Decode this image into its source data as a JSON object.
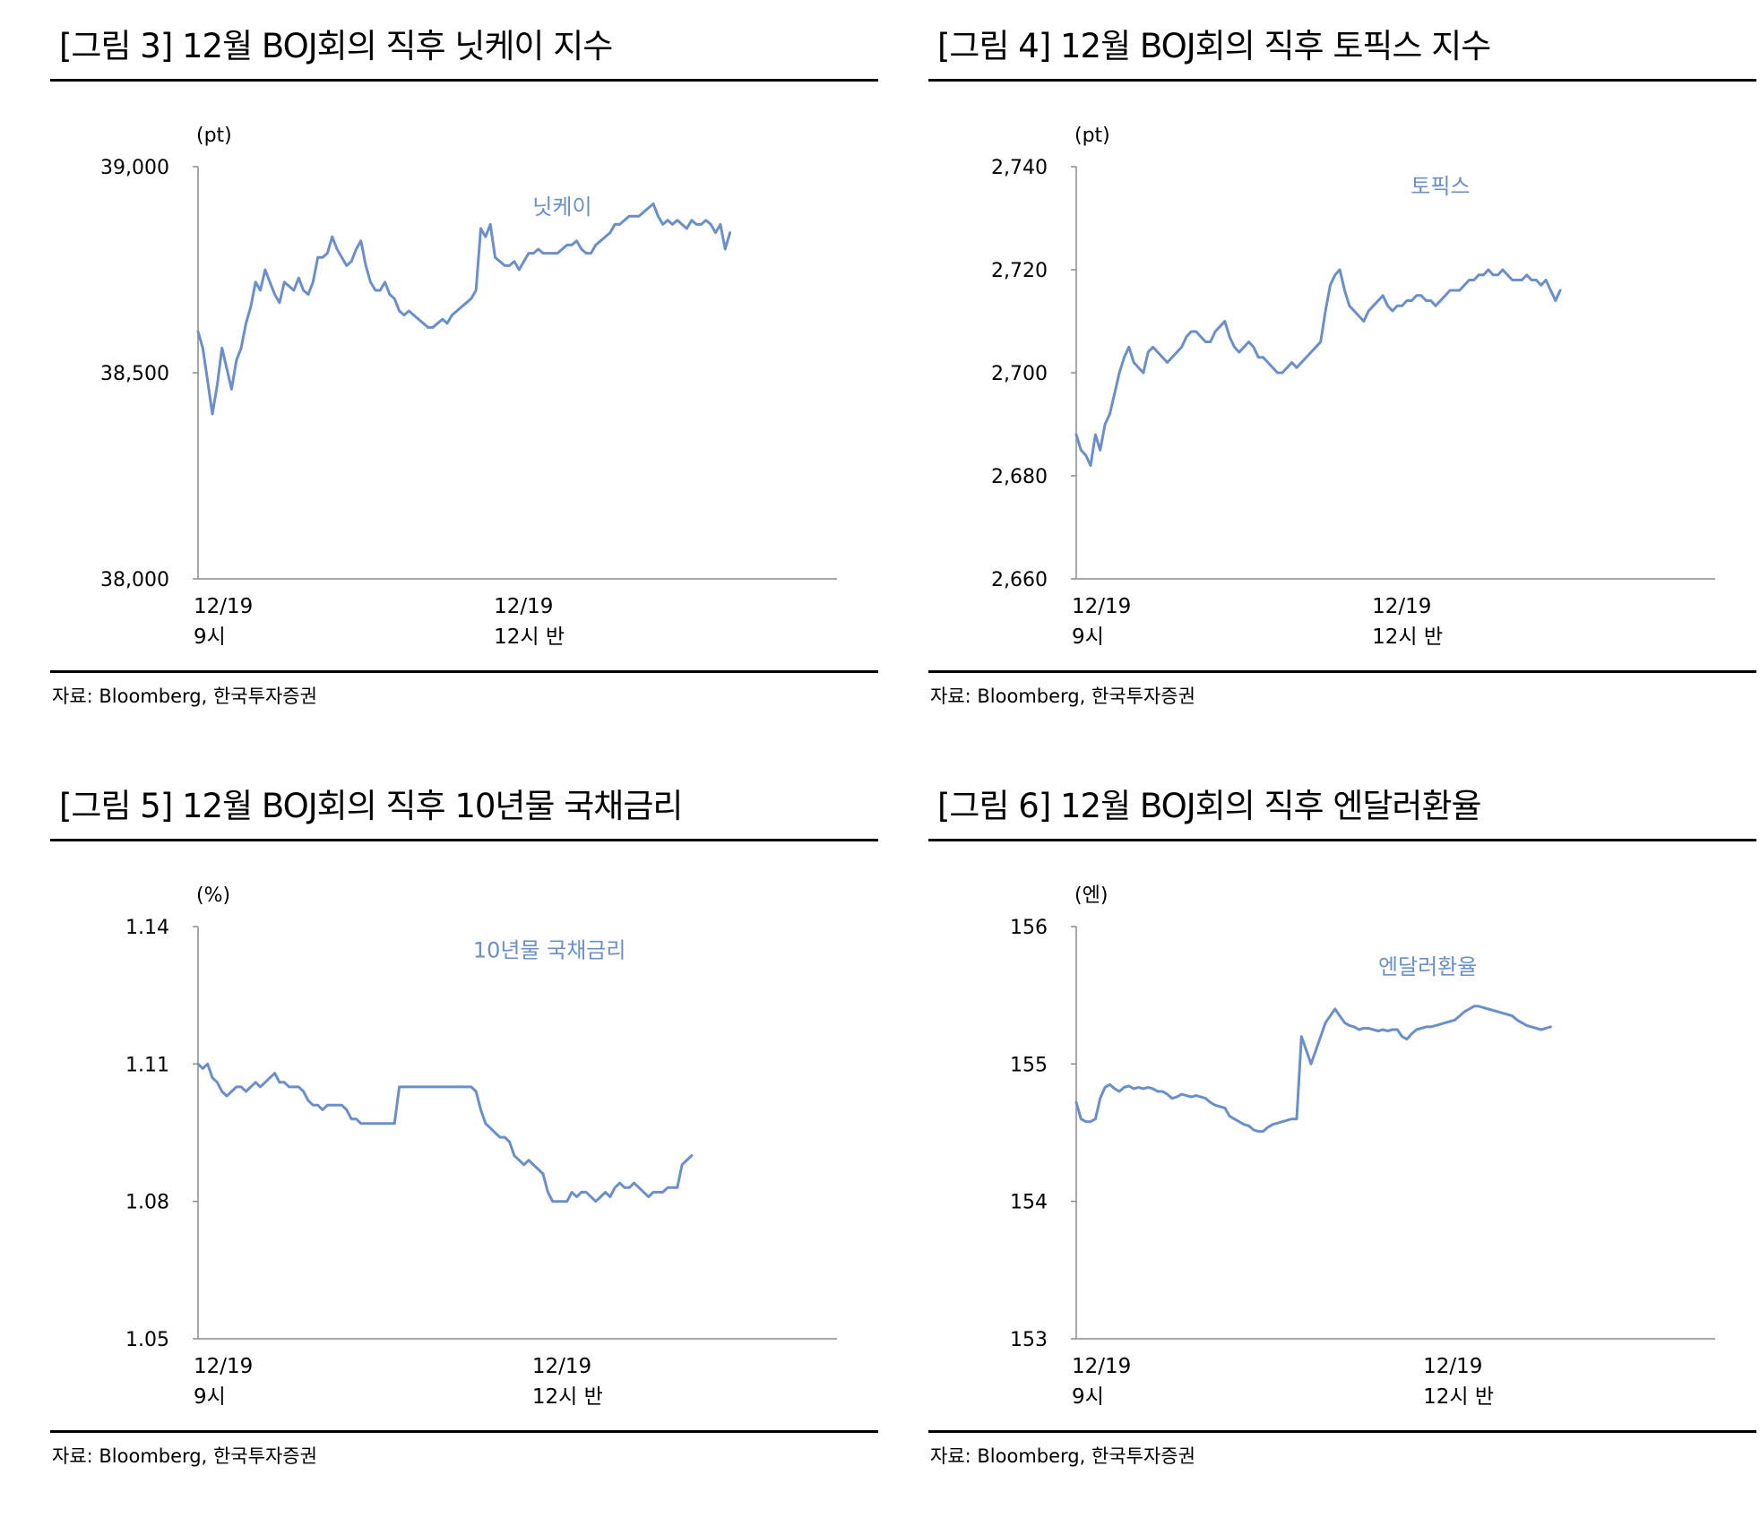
{
  "panels": [
    {
      "id": "nikkei",
      "title": "[그림 3] 12월 BOJ회의 직후 닛케이 지수",
      "source": "자료: Bloomberg, 한국투자증권",
      "chart_data": {
        "type": "line",
        "unit_label": "(pt)",
        "ylim": [
          38000,
          39000
        ],
        "yticks": [
          "39,000",
          "38,500",
          "38,000"
        ],
        "ytick_values": [
          39000,
          38500,
          38000
        ],
        "x_tick_labels": [
          [
            "12/19",
            "9시"
          ],
          [
            "12/19",
            "12시 반"
          ]
        ],
        "x_tick_positions": [
          0,
          0.47
        ],
        "series": [
          {
            "name": "닛케이",
            "color": "#6A8FC9",
            "step": 0.0075,
            "values": [
              38600,
              38560,
              38480,
              38400,
              38470,
              38560,
              38510,
              38460,
              38530,
              38560,
              38620,
              38660,
              38720,
              38700,
              38750,
              38720,
              38690,
              38670,
              38720,
              38710,
              38700,
              38730,
              38700,
              38690,
              38720,
              38780,
              38780,
              38790,
              38830,
              38800,
              38780,
              38760,
              38770,
              38800,
              38820,
              38760,
              38720,
              38700,
              38700,
              38720,
              38690,
              38680,
              38650,
              38640,
              38650,
              38640,
              38630,
              38620,
              38610,
              38610,
              38620,
              38630,
              38620,
              38640,
              38650,
              38660,
              38670,
              38680,
              38700,
              38850,
              38830,
              38860,
              38780,
              38770,
              38760,
              38760,
              38770,
              38750,
              38770,
              38790,
              38790,
              38800,
              38790,
              38790,
              38790,
              38790,
              38800,
              38810,
              38810,
              38820,
              38800,
              38790,
              38790,
              38810,
              38820,
              38830,
              38840,
              38860,
              38860,
              38870,
              38880,
              38880,
              38880,
              38890,
              38900,
              38910,
              38880,
              38860,
              38870,
              38860,
              38870,
              38860,
              38850,
              38870,
              38860,
              38860,
              38870,
              38860,
              38840,
              38860,
              38800,
              38840
            ]
          }
        ]
      }
    },
    {
      "id": "topix",
      "title": "[그림 4] 12월 BOJ회의 직후 토픽스 지수",
      "source": "자료: Bloomberg, 한국투자증권",
      "chart_data": {
        "type": "line",
        "unit_label": "(pt)",
        "ylim": [
          2660,
          2740
        ],
        "yticks": [
          "2,740",
          "2,720",
          "2,700",
          "2,680",
          "2,660"
        ],
        "ytick_values": [
          2740,
          2720,
          2700,
          2680,
          2660
        ],
        "x_tick_labels": [
          [
            "12/19",
            "9시"
          ],
          [
            "12/19",
            "12시 반"
          ]
        ],
        "x_tick_positions": [
          0,
          0.47
        ],
        "series": [
          {
            "name": "토픽스",
            "color": "#6A8FC9",
            "step": 0.0075,
            "values": [
              2688,
              2685,
              2684,
              2682,
              2688,
              2685,
              2690,
              2692,
              2696,
              2700,
              2703,
              2705,
              2702,
              2701,
              2700,
              2704,
              2705,
              2704,
              2703,
              2702,
              2703,
              2704,
              2705,
              2707,
              2708,
              2708,
              2707,
              2706,
              2706,
              2708,
              2709,
              2710,
              2707,
              2705,
              2704,
              2705,
              2706,
              2705,
              2703,
              2703,
              2702,
              2701,
              2700,
              2700,
              2701,
              2702,
              2701,
              2702,
              2703,
              2704,
              2705,
              2706,
              2712,
              2717,
              2719,
              2720,
              2716,
              2713,
              2712,
              2711,
              2710,
              2712,
              2713,
              2714,
              2715,
              2713,
              2712,
              2713,
              2713,
              2714,
              2714,
              2715,
              2715,
              2714,
              2714,
              2713,
              2714,
              2715,
              2716,
              2716,
              2716,
              2717,
              2718,
              2718,
              2719,
              2719,
              2720,
              2719,
              2719,
              2720,
              2719,
              2718,
              2718,
              2718,
              2719,
              2718,
              2718,
              2717,
              2718,
              2716,
              2714,
              2716
            ]
          }
        ]
      }
    },
    {
      "id": "jgb10y",
      "title": "[그림 5] 12월 BOJ회의 직후 10년물 국채금리",
      "source": "자료: Bloomberg, 한국투자증권",
      "chart_data": {
        "type": "line",
        "unit_label": "(%)",
        "ylim": [
          1.05,
          1.14
        ],
        "yticks": [
          "1.14",
          "1.11",
          "1.08",
          "1.05"
        ],
        "ytick_values": [
          1.14,
          1.11,
          1.08,
          1.05
        ],
        "x_tick_labels": [
          [
            "12/19",
            "9시"
          ],
          [
            "12/19",
            "12시 반"
          ]
        ],
        "x_tick_positions": [
          0,
          0.53
        ],
        "series": [
          {
            "name": "10년물 국채금리",
            "color": "#6A8FC9",
            "step": 0.0075,
            "values": [
              1.11,
              1.109,
              1.11,
              1.107,
              1.106,
              1.104,
              1.103,
              1.104,
              1.105,
              1.105,
              1.104,
              1.105,
              1.106,
              1.105,
              1.106,
              1.107,
              1.108,
              1.106,
              1.106,
              1.105,
              1.105,
              1.105,
              1.104,
              1.102,
              1.101,
              1.101,
              1.1,
              1.101,
              1.101,
              1.101,
              1.101,
              1.1,
              1.098,
              1.098,
              1.097,
              1.097,
              1.097,
              1.097,
              1.097,
              1.097,
              1.097,
              1.097,
              1.105,
              1.105,
              1.105,
              1.105,
              1.105,
              1.105,
              1.105,
              1.105,
              1.105,
              1.105,
              1.105,
              1.105,
              1.105,
              1.105,
              1.105,
              1.105,
              1.104,
              1.1,
              1.097,
              1.096,
              1.095,
              1.094,
              1.094,
              1.093,
              1.09,
              1.089,
              1.088,
              1.089,
              1.088,
              1.087,
              1.086,
              1.082,
              1.08,
              1.08,
              1.08,
              1.08,
              1.082,
              1.081,
              1.082,
              1.082,
              1.081,
              1.08,
              1.081,
              1.082,
              1.081,
              1.083,
              1.084,
              1.083,
              1.083,
              1.084,
              1.083,
              1.082,
              1.081,
              1.082,
              1.082,
              1.082,
              1.083,
              1.083,
              1.083,
              1.088,
              1.089,
              1.09
            ]
          }
        ]
      }
    },
    {
      "id": "usdjpy",
      "title": "[그림 6] 12월 BOJ회의 직후 엔달러환율",
      "source": "자료: Bloomberg, 한국투자증권",
      "chart_data": {
        "type": "line",
        "unit_label": "(엔)",
        "ylim": [
          153,
          156
        ],
        "yticks": [
          "156",
          "155",
          "154",
          "153"
        ],
        "ytick_values": [
          156,
          155,
          154,
          153
        ],
        "x_tick_labels": [
          [
            "12/19",
            "9시"
          ],
          [
            "12/19",
            "12시 반"
          ]
        ],
        "x_tick_positions": [
          0,
          0.55
        ],
        "series": [
          {
            "name": "엔달러환율",
            "color": "#6A8FC9",
            "step": 0.0075,
            "values": [
              154.72,
              154.6,
              154.58,
              154.58,
              154.6,
              154.75,
              154.83,
              154.85,
              154.82,
              154.8,
              154.83,
              154.84,
              154.82,
              154.83,
              154.82,
              154.83,
              154.82,
              154.8,
              154.8,
              154.78,
              154.75,
              154.76,
              154.78,
              154.77,
              154.76,
              154.77,
              154.76,
              154.75,
              154.72,
              154.7,
              154.69,
              154.68,
              154.62,
              154.6,
              154.58,
              154.56,
              154.55,
              154.52,
              154.51,
              154.51,
              154.54,
              154.56,
              154.57,
              154.58,
              154.59,
              154.6,
              154.6,
              155.2,
              155.1,
              155.0,
              155.1,
              155.2,
              155.3,
              155.35,
              155.4,
              155.35,
              155.3,
              155.28,
              155.27,
              155.25,
              155.26,
              155.26,
              155.25,
              155.24,
              155.25,
              155.24,
              155.25,
              155.25,
              155.2,
              155.18,
              155.22,
              155.25,
              155.26,
              155.27,
              155.27,
              155.28,
              155.29,
              155.3,
              155.31,
              155.32,
              155.35,
              155.38,
              155.4,
              155.42,
              155.42,
              155.41,
              155.4,
              155.39,
              155.38,
              155.37,
              155.36,
              155.35,
              155.32,
              155.3,
              155.28,
              155.27,
              155.26,
              155.25,
              155.26,
              155.27
            ]
          }
        ]
      }
    }
  ]
}
